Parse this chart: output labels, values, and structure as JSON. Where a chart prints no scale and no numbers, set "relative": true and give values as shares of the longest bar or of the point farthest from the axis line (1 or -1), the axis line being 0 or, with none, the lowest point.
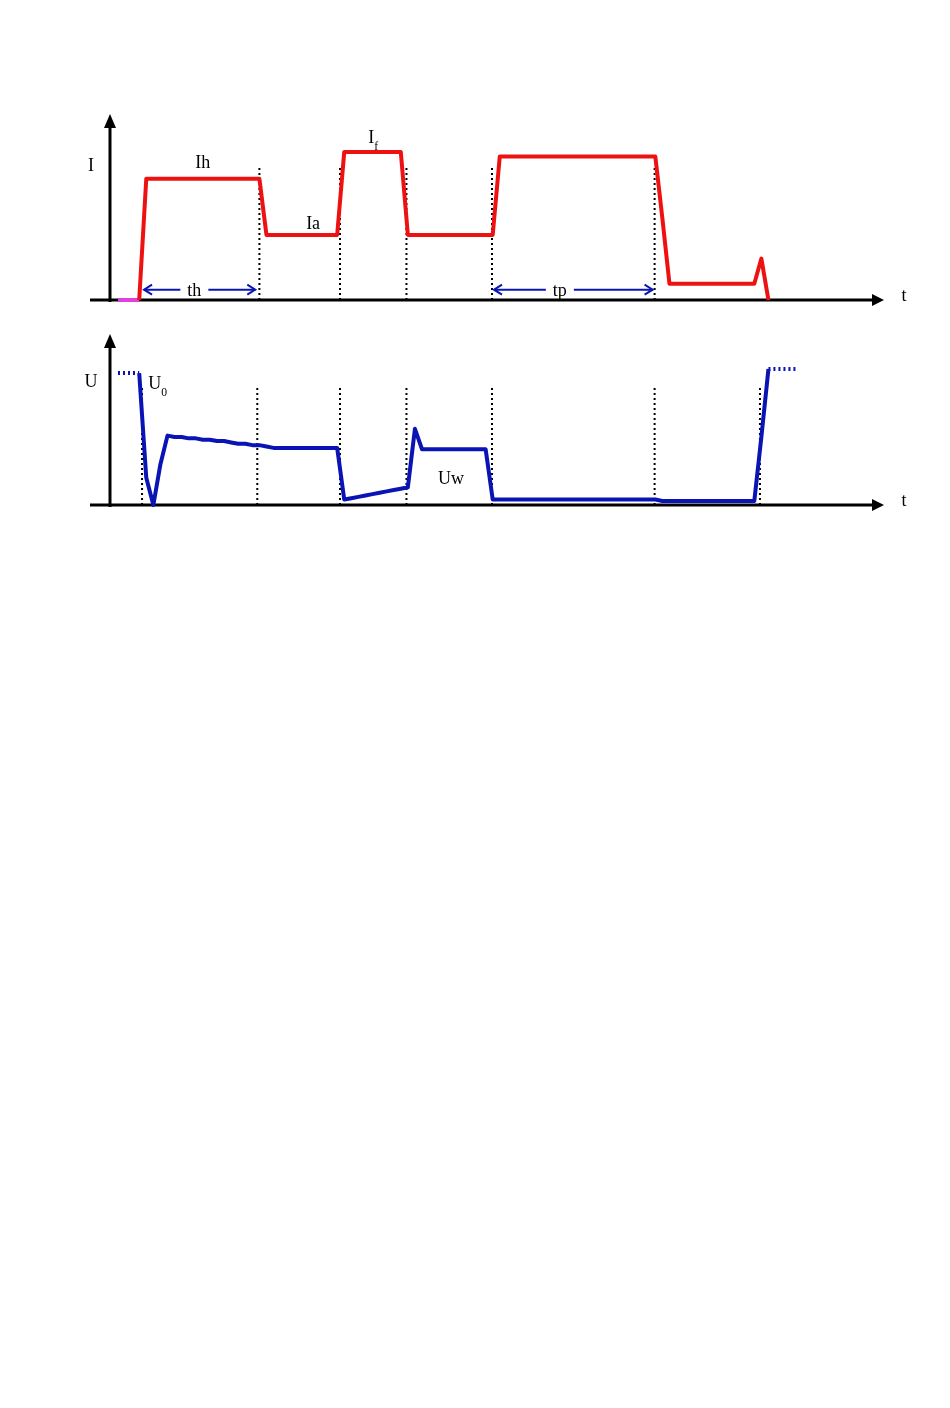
{
  "chart_data": [
    {
      "type": "line",
      "relative": true,
      "ylabel": "I",
      "xlabel": "t",
      "categories": [
        null,
        null,
        null,
        null,
        null,
        null,
        null,
        null,
        null,
        null,
        null,
        null,
        null,
        null,
        null,
        null,
        null,
        null,
        null,
        null,
        null,
        null,
        null,
        null,
        null,
        null,
        null,
        null,
        null,
        null,
        null,
        null,
        null,
        null,
        null,
        null,
        null,
        null,
        null,
        null,
        null,
        null,
        null,
        null,
        null,
        null,
        null,
        null,
        null,
        null,
        null,
        null,
        null,
        null,
        null,
        null,
        null,
        null,
        null,
        null,
        null,
        null,
        null,
        null,
        null,
        null,
        null,
        null,
        null,
        null,
        null,
        null,
        null,
        null,
        null,
        null,
        null,
        null,
        null,
        null,
        null,
        null,
        null,
        null,
        null,
        null,
        null,
        null,
        null,
        null,
        null,
        null,
        null,
        null,
        null,
        null,
        null,
        null,
        null,
        null,
        null
      ],
      "series": [
        {
          "color": "#e040e0",
          "values": [
            0,
            0,
            0,
            0,
            null,
            null,
            null,
            null,
            null,
            null,
            null,
            null,
            null,
            null,
            null,
            null,
            null,
            null,
            null,
            null,
            null,
            null,
            null,
            null,
            null,
            null,
            null,
            null,
            null,
            null,
            null,
            null,
            null,
            null,
            null,
            null,
            null,
            null,
            null,
            null,
            null,
            null,
            null,
            null,
            null,
            null,
            null,
            null,
            null,
            null,
            null,
            null,
            null,
            null,
            null,
            null,
            null,
            null,
            null,
            null,
            null,
            null,
            null,
            null,
            null,
            null,
            null,
            null,
            null,
            null,
            null,
            null,
            null,
            null,
            null,
            null,
            null,
            null,
            null,
            null,
            null,
            null,
            null,
            null,
            null,
            null,
            null,
            null,
            null,
            null,
            null,
            null,
            null,
            null,
            null,
            null,
            null,
            null,
            null,
            null,
            null
          ]
        },
        {
          "color": "#ee1111",
          "values": [
            null,
            null,
            null,
            0,
            0.82,
            0.82,
            0.82,
            0.82,
            0.82,
            0.82,
            0.82,
            0.82,
            0.82,
            0.82,
            0.82,
            0.82,
            0.82,
            0.82,
            0.82,
            0.82,
            0.82,
            0.44,
            0.44,
            0.44,
            0.44,
            0.44,
            0.44,
            0.44,
            0.44,
            0.44,
            0.44,
            0.44,
            1,
            1,
            1,
            1,
            1,
            1,
            1,
            1,
            1,
            0.44,
            0.44,
            0.44,
            0.44,
            0.44,
            0.44,
            0.44,
            0.44,
            0.44,
            0.44,
            0.44,
            0.44,
            0.44,
            0.97,
            0.97,
            0.97,
            0.97,
            0.97,
            0.97,
            0.97,
            0.97,
            0.97,
            0.97,
            0.97,
            0.97,
            0.97,
            0.97,
            0.97,
            0.97,
            0.97,
            0.97,
            0.97,
            0.97,
            0.97,
            0.97,
            0.97,
            0.55,
            0.11,
            0.11,
            0.11,
            0.11,
            0.11,
            0.11,
            0.11,
            0.11,
            0.11,
            0.11,
            0.11,
            0.11,
            0.11,
            0.28,
            0,
            null,
            null,
            null,
            null,
            null,
            null,
            null,
            null
          ]
        }
      ],
      "annotations": [
        "Ih",
        "Ia",
        "I$_{f}$",
        "th",
        "tp"
      ],
      "ref_lines": [
        {
          "axis": "x",
          "line_style": "dotted",
          "color": "#000000"
        },
        {
          "axis": "x",
          "line_style": "dotted",
          "color": "#000000"
        },
        {
          "axis": "x",
          "line_style": "dotted",
          "color": "#000000"
        },
        {
          "axis": "x",
          "line_style": "dotted",
          "color": "#000000"
        },
        {
          "axis": "x",
          "line_style": "dotted",
          "color": "#000000"
        }
      ]
    },
    {
      "type": "line",
      "relative": true,
      "ylabel": "U",
      "xlabel": "t",
      "categories": [
        null,
        null,
        null,
        null,
        null,
        null,
        null,
        null,
        null,
        null,
        null,
        null,
        null,
        null,
        null,
        null,
        null,
        null,
        null,
        null,
        null,
        null,
        null,
        null,
        null,
        null,
        null,
        null,
        null,
        null,
        null,
        null,
        null,
        null,
        null,
        null,
        null,
        null,
        null,
        null,
        null,
        null,
        null,
        null,
        null,
        null,
        null,
        null,
        null,
        null,
        null,
        null,
        null,
        null,
        null,
        null,
        null,
        null,
        null,
        null,
        null,
        null,
        null,
        null,
        null,
        null,
        null,
        null,
        null,
        null,
        null,
        null,
        null,
        null,
        null,
        null,
        null,
        null,
        null,
        null,
        null,
        null,
        null,
        null,
        null,
        null,
        null,
        null,
        null,
        null,
        null,
        null,
        null,
        null,
        null,
        null,
        null,
        null,
        null,
        null,
        null
      ],
      "series": [
        {
          "color": "#0a14b4",
          "line_style": "dotted",
          "values": [
            0.97,
            0.97,
            0.97,
            0.97,
            null,
            null,
            null,
            null,
            null,
            null,
            null,
            null,
            null,
            null,
            null,
            null,
            null,
            null,
            null,
            null,
            null,
            null,
            null,
            null,
            null,
            null,
            null,
            null,
            null,
            null,
            null,
            null,
            null,
            null,
            null,
            null,
            null,
            null,
            null,
            null,
            null,
            null,
            null,
            null,
            null,
            null,
            null,
            null,
            null,
            null,
            null,
            null,
            null,
            null,
            null,
            null,
            null,
            null,
            null,
            null,
            null,
            null,
            null,
            null,
            null,
            null,
            null,
            null,
            null,
            null,
            null,
            null,
            null,
            null,
            null,
            null,
            null,
            null,
            null,
            null,
            null,
            null,
            null,
            null,
            null,
            null,
            null,
            null,
            null,
            null,
            null,
            null,
            null,
            null,
            null,
            null,
            null,
            null,
            null,
            null,
            null
          ]
        },
        {
          "color": "#0a14b4",
          "values": [
            null,
            null,
            null,
            0.97,
            0.2,
            0,
            0.3,
            0.51,
            0.5,
            0.5,
            0.49,
            0.49,
            0.48,
            0.48,
            0.47,
            0.47,
            0.46,
            0.45,
            0.45,
            0.44,
            0.44,
            0.43,
            0.42,
            0.42,
            0.42,
            0.42,
            0.42,
            0.42,
            0.42,
            0.42,
            0.42,
            0.42,
            0.04,
            0.05,
            0.06,
            0.07,
            0.08,
            0.09,
            0.1,
            0.11,
            0.12,
            0.13,
            0.56,
            0.41,
            0.41,
            0.41,
            0.41,
            0.41,
            0.41,
            0.41,
            0.41,
            0.41,
            0.41,
            0.04,
            0.04,
            0.04,
            0.04,
            0.04,
            0.04,
            0.04,
            0.04,
            0.04,
            0.04,
            0.04,
            0.04,
            0.04,
            0.04,
            0.04,
            0.04,
            0.04,
            0.04,
            0.04,
            0.04,
            0.04,
            0.04,
            0.04,
            0.04,
            0.03,
            0.03,
            0.03,
            0.03,
            0.03,
            0.03,
            0.03,
            0.03,
            0.03,
            0.03,
            0.03,
            0.03,
            0.03,
            0.03,
            0.5,
            1,
            null,
            null,
            null,
            null,
            null,
            null,
            null,
            null
          ]
        },
        {
          "color": "#0a14b4",
          "line_style": "dotted",
          "values": [
            null,
            null,
            null,
            null,
            null,
            null,
            null,
            null,
            null,
            null,
            null,
            null,
            null,
            null,
            null,
            null,
            null,
            null,
            null,
            null,
            null,
            null,
            null,
            null,
            null,
            null,
            null,
            null,
            null,
            null,
            null,
            null,
            null,
            null,
            null,
            null,
            null,
            null,
            null,
            null,
            null,
            null,
            null,
            null,
            null,
            null,
            null,
            null,
            null,
            null,
            null,
            null,
            null,
            null,
            null,
            null,
            null,
            null,
            null,
            null,
            null,
            null,
            null,
            null,
            null,
            null,
            null,
            null,
            null,
            null,
            null,
            null,
            null,
            null,
            null,
            null,
            null,
            null,
            null,
            null,
            null,
            null,
            null,
            null,
            null,
            null,
            null,
            null,
            null,
            null,
            null,
            null,
            1,
            1,
            1,
            1,
            1,
            null,
            null,
            null,
            null
          ]
        }
      ],
      "annotations": [
        "U$_{0}$",
        "Uw"
      ],
      "ref_lines": [
        {
          "axis": "x",
          "line_style": "dotted",
          "color": "#000000"
        },
        {
          "axis": "x",
          "line_style": "dotted",
          "color": "#000000"
        },
        {
          "axis": "x",
          "line_style": "dotted",
          "color": "#000000"
        },
        {
          "axis": "x",
          "line_style": "dotted",
          "color": "#000000"
        },
        {
          "axis": "x",
          "line_style": "dotted",
          "color": "#000000"
        },
        {
          "axis": "x",
          "line_style": "dotted",
          "color": "#000000"
        },
        {
          "axis": "x",
          "line_style": "dotted",
          "color": "#000000"
        }
      ]
    }
  ]
}
